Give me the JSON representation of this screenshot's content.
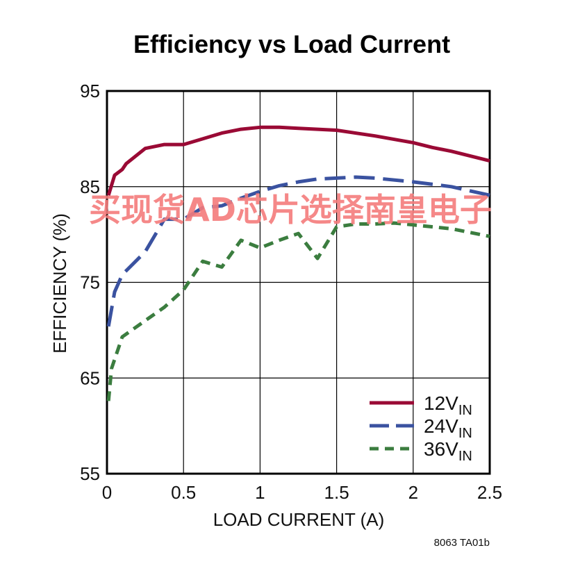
{
  "chart_data": {
    "type": "line",
    "title": "Efficiency vs Load Current",
    "xlabel": "LOAD CURRENT (A)",
    "ylabel": "EFFICIENCY (%)",
    "xlim": [
      0,
      2.5
    ],
    "ylim": [
      55,
      95
    ],
    "xticks": [
      "0",
      "0.5",
      "1",
      "1.5",
      "2",
      "2.5"
    ],
    "xtick_values": [
      0,
      0.5,
      1,
      1.5,
      2,
      2.5
    ],
    "yticks": [
      "55",
      "65",
      "75",
      "85",
      "95"
    ],
    "ytick_values": [
      55,
      65,
      75,
      85,
      95
    ],
    "grid": true,
    "legend_position": "bottom-right",
    "series": [
      {
        "name": "12V",
        "name_sub": "IN",
        "color": "#9a0a35",
        "dash": "solid",
        "x": [
          0.01,
          0.05,
          0.1,
          0.125,
          0.25,
          0.375,
          0.5,
          0.625,
          0.75,
          0.875,
          1.0,
          1.125,
          1.25,
          1.375,
          1.5,
          1.75,
          2.0,
          2.125,
          2.25,
          2.5
        ],
        "y": [
          84.1,
          86.2,
          86.8,
          87.4,
          89.0,
          89.4,
          89.4,
          90.0,
          90.6,
          91.0,
          91.2,
          91.2,
          91.1,
          91.0,
          90.9,
          90.3,
          89.6,
          89.1,
          88.7,
          87.7
        ]
      },
      {
        "name": "24V",
        "name_sub": "IN",
        "color": "#3a52a0",
        "dash": "long-dash",
        "x": [
          0.01,
          0.05,
          0.1,
          0.25,
          0.375,
          0.5,
          0.625,
          0.75,
          0.875,
          1.0,
          1.125,
          1.25,
          1.375,
          1.5,
          1.625,
          1.75,
          2.0,
          2.25,
          2.5
        ],
        "y": [
          70.4,
          74.0,
          75.8,
          78.2,
          81.6,
          81.6,
          82.8,
          83.0,
          83.8,
          84.5,
          85.1,
          85.5,
          85.8,
          85.9,
          86.0,
          85.9,
          85.5,
          85.0,
          84.1
        ]
      },
      {
        "name": "36V",
        "name_sub": "IN",
        "color": "#3b7d3f",
        "dash": "short-dash",
        "x": [
          0.01,
          0.03,
          0.1,
          0.25,
          0.375,
          0.5,
          0.625,
          0.75,
          0.875,
          1.0,
          1.125,
          1.25,
          1.375,
          1.5,
          1.625,
          1.75,
          1.875,
          2.0,
          2.25,
          2.5
        ],
        "y": [
          62.6,
          66.0,
          69.3,
          71.0,
          72.4,
          74.2,
          77.2,
          76.6,
          79.4,
          78.6,
          79.4,
          80.1,
          77.5,
          80.8,
          81.1,
          81.1,
          81.2,
          81.0,
          80.6,
          79.8
        ]
      }
    ]
  },
  "figure_id": "8063 TA01b",
  "watermark": "买现货AD芯片选择南皇电子"
}
